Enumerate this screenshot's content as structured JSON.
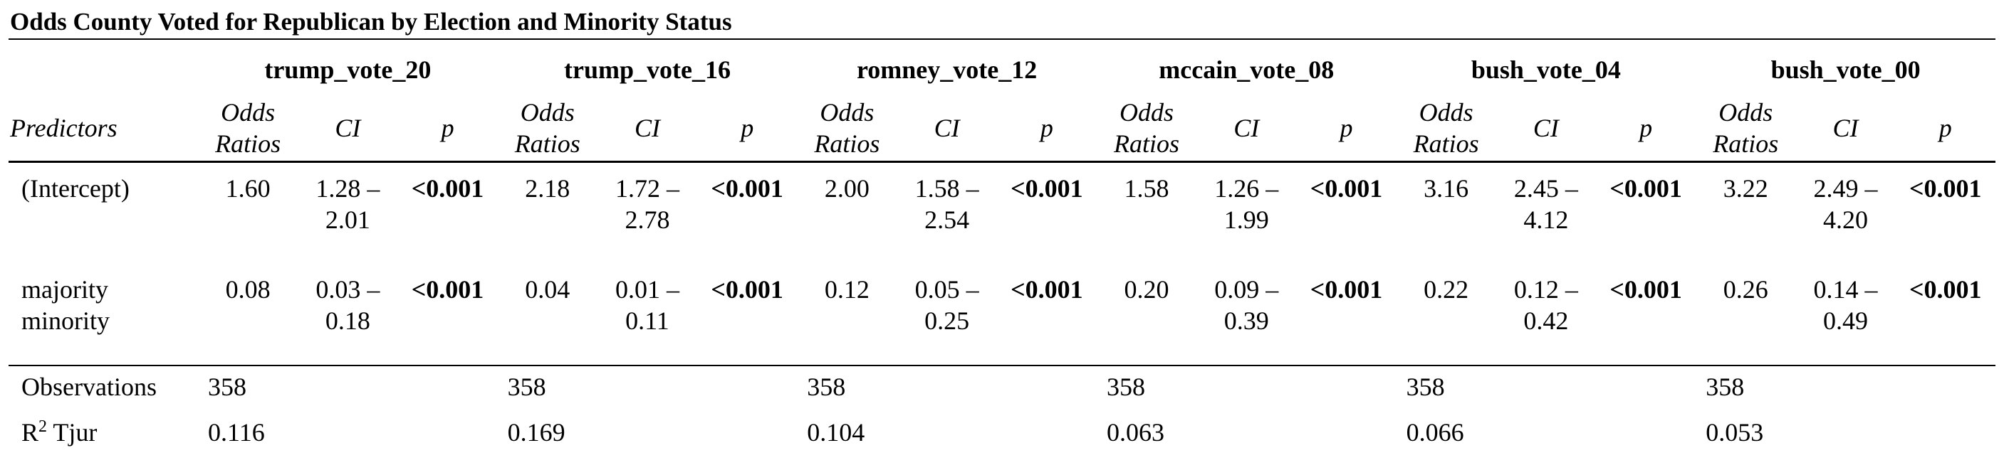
{
  "caption": "Odds County Voted for Republican by Election and Minority Status",
  "header": {
    "predictors": "Predictors",
    "odds_line1": "Odds",
    "odds_line2": "Ratios",
    "ci": "CI",
    "p": "p"
  },
  "models": [
    {
      "name": "trump_vote_20",
      "observations": "358",
      "r2": "0.116",
      "rows": [
        {
          "or": "1.60",
          "ci_a": "1.28 –",
          "ci_b": "2.01",
          "p": "<0.001"
        },
        {
          "or": "0.08",
          "ci_a": "0.03 –",
          "ci_b": "0.18",
          "p": "<0.001"
        }
      ]
    },
    {
      "name": "trump_vote_16",
      "observations": "358",
      "r2": "0.169",
      "rows": [
        {
          "or": "2.18",
          "ci_a": "1.72 –",
          "ci_b": "2.78",
          "p": "<0.001"
        },
        {
          "or": "0.04",
          "ci_a": "0.01 –",
          "ci_b": "0.11",
          "p": "<0.001"
        }
      ]
    },
    {
      "name": "romney_vote_12",
      "observations": "358",
      "r2": "0.104",
      "rows": [
        {
          "or": "2.00",
          "ci_a": "1.58 –",
          "ci_b": "2.54",
          "p": "<0.001"
        },
        {
          "or": "0.12",
          "ci_a": "0.05 –",
          "ci_b": "0.25",
          "p": "<0.001"
        }
      ]
    },
    {
      "name": "mccain_vote_08",
      "observations": "358",
      "r2": "0.063",
      "rows": [
        {
          "or": "1.58",
          "ci_a": "1.26 –",
          "ci_b": "1.99",
          "p": "<0.001"
        },
        {
          "or": "0.20",
          "ci_a": "0.09 –",
          "ci_b": "0.39",
          "p": "<0.001"
        }
      ]
    },
    {
      "name": "bush_vote_04",
      "observations": "358",
      "r2": "0.066",
      "rows": [
        {
          "or": "3.16",
          "ci_a": "2.45 –",
          "ci_b": "4.12",
          "p": "<0.001"
        },
        {
          "or": "0.22",
          "ci_a": "0.12 –",
          "ci_b": "0.42",
          "p": "<0.001"
        }
      ]
    },
    {
      "name": "bush_vote_00",
      "observations": "358",
      "r2": "0.053",
      "rows": [
        {
          "or": "3.22",
          "ci_a": "2.49 –",
          "ci_b": "4.20",
          "p": "<0.001"
        },
        {
          "or": "0.26",
          "ci_a": "0.14 –",
          "ci_b": "0.49",
          "p": "<0.001"
        }
      ]
    }
  ],
  "predictors": [
    {
      "line1": "(Intercept)",
      "line2": ""
    },
    {
      "line1": "majority",
      "line2": "minority"
    }
  ],
  "stats": {
    "observations_label": "Observations",
    "r2_prefix": "R",
    "r2_sup": "2",
    "r2_suffix": " Tjur"
  }
}
